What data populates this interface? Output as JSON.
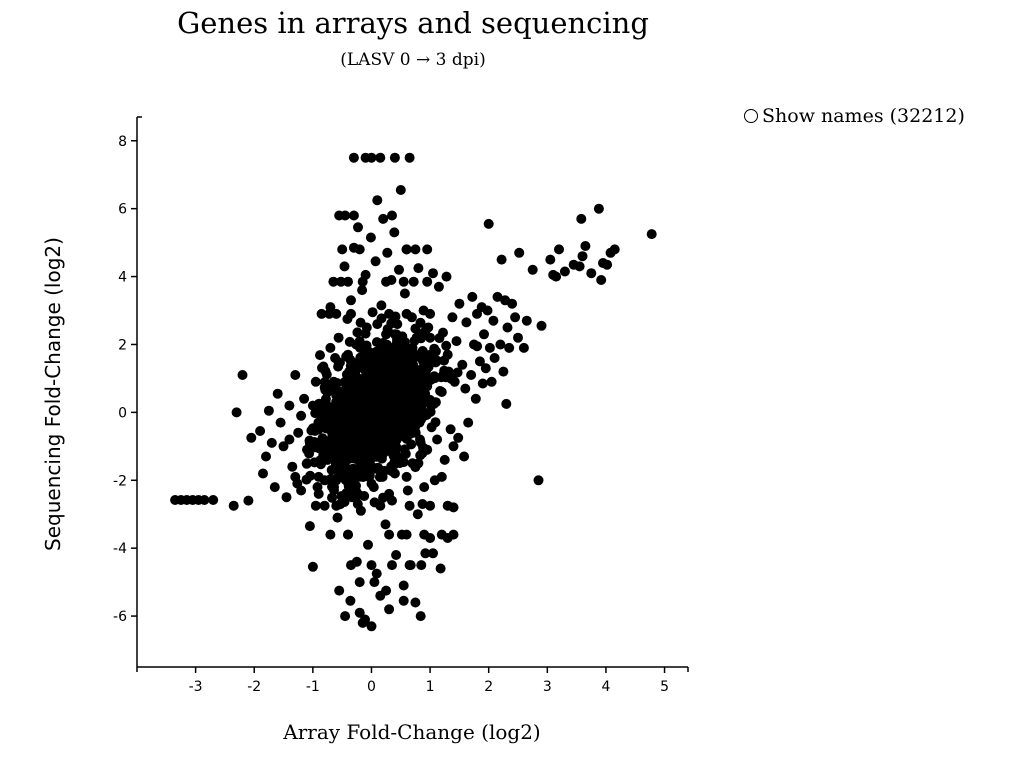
{
  "chart_data": {
    "type": "scatter",
    "title": "Genes in arrays and sequencing",
    "subtitle": "(LASV 0 → 3 dpi)",
    "xlabel": "Array Fold-Change (log2)",
    "ylabel": "Sequencing Fold-Change (log2)",
    "xlim": [
      -4,
      5.4
    ],
    "ylim": [
      -7.5,
      8.7
    ],
    "xticks": [
      -3,
      -2,
      -1,
      0,
      1,
      2,
      3,
      4,
      5
    ],
    "yticks": [
      -6,
      -4,
      -2,
      0,
      2,
      4,
      6,
      8
    ],
    "grid": false,
    "marker_color": "#000000",
    "legend": {
      "label": "Show names (32212)",
      "position": "top-right"
    },
    "series": [
      {
        "points": [
          [
            -3.35,
            -2.58
          ],
          [
            -3.25,
            -2.58
          ],
          [
            -3.15,
            -2.58
          ],
          [
            -3.05,
            -2.58
          ],
          [
            -2.95,
            -2.58
          ],
          [
            -2.85,
            -2.58
          ],
          [
            -2.7,
            -2.58
          ],
          [
            -2.35,
            -2.75
          ],
          [
            -2.3,
            0.0
          ],
          [
            -2.1,
            -2.6
          ],
          [
            -2.05,
            -0.75
          ],
          [
            -2.2,
            1.1
          ],
          [
            -1.9,
            -0.55
          ],
          [
            -1.85,
            -1.8
          ],
          [
            -1.8,
            -1.3
          ],
          [
            -1.75,
            0.05
          ],
          [
            -1.7,
            -0.9
          ],
          [
            -1.65,
            -2.2
          ],
          [
            -1.6,
            0.55
          ],
          [
            -1.55,
            -0.3
          ],
          [
            -1.5,
            -1.0
          ],
          [
            -1.45,
            -2.5
          ],
          [
            -1.4,
            0.2
          ],
          [
            -1.35,
            -1.6
          ],
          [
            -1.3,
            1.1
          ],
          [
            -1.25,
            -0.6
          ],
          [
            -1.2,
            -2.3
          ],
          [
            -1.15,
            0.4
          ],
          [
            -1.1,
            -1.1
          ],
          [
            -1.05,
            -3.35
          ],
          [
            -1.0,
            -4.55
          ],
          [
            -0.95,
            0.9
          ],
          [
            -0.9,
            -1.9
          ],
          [
            -0.85,
            -0.2
          ],
          [
            -0.82,
            1.35
          ],
          [
            -0.8,
            -2.75
          ],
          [
            -0.78,
            0.3
          ],
          [
            -0.75,
            -1.4
          ],
          [
            -0.72,
            2.9
          ],
          [
            -0.7,
            3.1
          ],
          [
            -0.68,
            -0.8
          ],
          [
            -0.66,
            0.75
          ],
          [
            -0.64,
            -2.2
          ],
          [
            -0.62,
            1.6
          ],
          [
            -0.6,
            -0.1
          ],
          [
            -0.58,
            -3.1
          ],
          [
            -0.56,
            2.2
          ],
          [
            -0.55,
            -5.25
          ],
          [
            -0.52,
            3.85
          ],
          [
            -0.5,
            -1.7
          ],
          [
            -0.48,
            0.55
          ],
          [
            -0.46,
            4.3
          ],
          [
            -0.45,
            5.8
          ],
          [
            -0.43,
            -0.5
          ],
          [
            -0.41,
            2.75
          ],
          [
            -0.4,
            -3.6
          ],
          [
            -0.38,
            1.2
          ],
          [
            -0.36,
            -5.55
          ],
          [
            -0.35,
            3.3
          ],
          [
            -0.33,
            -2.5
          ],
          [
            -0.31,
            0.1
          ],
          [
            -0.3,
            4.85
          ],
          [
            -0.28,
            -1.2
          ],
          [
            -0.26,
            2.0
          ],
          [
            -0.25,
            -4.4
          ],
          [
            -0.23,
            5.45
          ],
          [
            -0.21,
            0.8
          ],
          [
            -0.2,
            -5.9
          ],
          [
            -0.18,
            -2.9
          ],
          [
            -0.16,
            3.6
          ],
          [
            -0.15,
            1.5
          ],
          [
            -0.13,
            -0.9
          ],
          [
            -0.11,
            -6.1
          ],
          [
            -0.1,
            4.05
          ],
          [
            -0.08,
            2.5
          ],
          [
            -0.06,
            -3.9
          ],
          [
            -0.05,
            0.3
          ],
          [
            -0.03,
            -1.6
          ],
          [
            -0.01,
            5.15
          ],
          [
            0.0,
            -6.3
          ],
          [
            0.02,
            2.95
          ],
          [
            0.04,
            -2.2
          ],
          [
            0.05,
            0.65
          ],
          [
            0.07,
            4.45
          ],
          [
            0.09,
            -4.75
          ],
          [
            0.1,
            6.25
          ],
          [
            0.12,
            -0.4
          ],
          [
            0.14,
            1.8
          ],
          [
            0.15,
            -5.4
          ],
          [
            0.17,
            3.15
          ],
          [
            0.19,
            -1.9
          ],
          [
            0.2,
            5.7
          ],
          [
            0.22,
            0.2
          ],
          [
            0.24,
            -3.3
          ],
          [
            0.25,
            2.3
          ],
          [
            0.27,
            4.7
          ],
          [
            0.29,
            -0.7
          ],
          [
            0.3,
            -5.8
          ],
          [
            0.32,
            1.3
          ],
          [
            0.34,
            3.9
          ],
          [
            0.35,
            -2.6
          ],
          [
            0.37,
            0.9
          ],
          [
            0.39,
            5.3
          ],
          [
            0.4,
            7.5
          ],
          [
            0.42,
            -4.2
          ],
          [
            0.44,
            2.6
          ],
          [
            0.45,
            -1.3
          ],
          [
            0.47,
            4.2
          ],
          [
            0.49,
            0.0
          ],
          [
            0.5,
            6.55
          ],
          [
            0.52,
            -3.6
          ],
          [
            0.54,
            1.9
          ],
          [
            0.55,
            -5.1
          ],
          [
            0.57,
            3.5
          ],
          [
            0.59,
            -0.6
          ],
          [
            0.6,
            4.8
          ],
          [
            0.62,
            -2.3
          ],
          [
            0.64,
            1.0
          ],
          [
            0.65,
            7.5
          ],
          [
            0.67,
            -4.5
          ],
          [
            0.69,
            2.8
          ],
          [
            0.7,
            -1.5
          ],
          [
            0.72,
            3.85
          ],
          [
            0.74,
            0.4
          ],
          [
            0.75,
            -5.6
          ],
          [
            0.77,
            2.2
          ],
          [
            0.79,
            -3.0
          ],
          [
            0.8,
            4.25
          ],
          [
            0.82,
            -0.3
          ],
          [
            0.84,
            -6.0
          ],
          [
            0.85,
            1.6
          ],
          [
            0.87,
            -2.7
          ],
          [
            0.89,
            3.0
          ],
          [
            0.9,
            0.75
          ],
          [
            0.92,
            -4.15
          ],
          [
            0.94,
            1.3
          ],
          [
            0.95,
            -1.1
          ],
          [
            0.97,
            2.5
          ],
          [
            1.0,
            -3.7
          ],
          [
            1.02,
            0.2
          ],
          [
            1.05,
            4.1
          ],
          [
            1.08,
            -2.0
          ],
          [
            1.1,
            1.8
          ],
          [
            1.12,
            -0.8
          ],
          [
            1.15,
            3.7
          ],
          [
            1.18,
            -4.6
          ],
          [
            1.2,
            0.6
          ],
          [
            1.22,
            2.35
          ],
          [
            1.25,
            -1.4
          ],
          [
            1.28,
            4.0
          ],
          [
            1.3,
            -3.7
          ],
          [
            1.32,
            1.2
          ],
          [
            1.35,
            -0.5
          ],
          [
            1.38,
            2.8
          ],
          [
            1.4,
            -2.8
          ],
          [
            1.42,
            0.9
          ],
          [
            1.45,
            2.1
          ],
          [
            1.48,
            -0.75
          ],
          [
            1.5,
            3.2
          ],
          [
            1.55,
            1.4
          ],
          [
            1.58,
            -1.3
          ],
          [
            1.6,
            0.7
          ],
          [
            1.62,
            2.65
          ],
          [
            1.65,
            -0.3
          ],
          [
            1.7,
            1.1
          ],
          [
            1.72,
            3.4
          ],
          [
            1.75,
            2.0
          ],
          [
            1.78,
            0.4
          ],
          [
            1.8,
            2.9
          ],
          [
            1.85,
            1.5
          ],
          [
            1.88,
            3.1
          ],
          [
            1.9,
            0.85
          ],
          [
            1.92,
            2.3
          ],
          [
            1.95,
            1.3
          ],
          [
            1.98,
            3.0
          ],
          [
            2.0,
            5.55
          ],
          [
            2.02,
            1.9
          ],
          [
            2.05,
            0.9
          ],
          [
            2.08,
            2.7
          ],
          [
            2.1,
            1.6
          ],
          [
            2.15,
            3.4
          ],
          [
            2.2,
            2.0
          ],
          [
            2.22,
            4.5
          ],
          [
            2.25,
            1.2
          ],
          [
            2.28,
            3.3
          ],
          [
            2.3,
            0.25
          ],
          [
            2.32,
            2.5
          ],
          [
            2.35,
            1.9
          ],
          [
            2.4,
            3.2
          ],
          [
            2.45,
            2.8
          ],
          [
            2.5,
            2.2
          ],
          [
            2.52,
            4.7
          ],
          [
            2.6,
            1.9
          ],
          [
            2.65,
            2.7
          ],
          [
            2.75,
            4.2
          ],
          [
            2.85,
            -2.0
          ],
          [
            2.9,
            2.55
          ],
          [
            3.05,
            4.5
          ],
          [
            3.1,
            4.05
          ],
          [
            3.15,
            4.0
          ],
          [
            3.2,
            4.8
          ],
          [
            3.3,
            4.15
          ],
          [
            3.45,
            4.35
          ],
          [
            3.55,
            4.3
          ],
          [
            3.58,
            5.7
          ],
          [
            3.6,
            4.6
          ],
          [
            3.65,
            4.9
          ],
          [
            3.75,
            4.1
          ],
          [
            3.88,
            6.0
          ],
          [
            3.92,
            3.9
          ],
          [
            3.95,
            4.4
          ],
          [
            4.02,
            4.35
          ],
          [
            4.08,
            4.7
          ],
          [
            4.15,
            4.8
          ],
          [
            4.78,
            5.25
          ],
          [
            -0.3,
            7.5
          ],
          [
            -0.1,
            7.5
          ],
          [
            0.0,
            7.5
          ],
          [
            0.15,
            7.5
          ],
          [
            -0.55,
            5.8
          ],
          [
            -0.3,
            5.8
          ],
          [
            0.35,
            5.8
          ],
          [
            -0.4,
            3.85
          ],
          [
            -0.65,
            3.85
          ],
          [
            -0.15,
            3.85
          ],
          [
            0.25,
            3.85
          ],
          [
            0.55,
            3.85
          ],
          [
            0.95,
            3.85
          ],
          [
            -0.6,
            2.9
          ],
          [
            -0.85,
            2.9
          ],
          [
            -0.35,
            2.9
          ],
          [
            0.3,
            2.9
          ],
          [
            0.6,
            2.9
          ],
          [
            1.0,
            2.9
          ],
          [
            -0.5,
            4.8
          ],
          [
            -0.2,
            4.8
          ],
          [
            0.6,
            4.8
          ],
          [
            0.75,
            4.8
          ],
          [
            0.95,
            4.8
          ],
          [
            -0.4,
            -3.6
          ],
          [
            -0.7,
            -3.6
          ],
          [
            0.3,
            -3.6
          ],
          [
            0.6,
            -3.6
          ],
          [
            0.9,
            -3.6
          ],
          [
            1.2,
            -3.6
          ],
          [
            1.4,
            -3.6
          ],
          [
            -0.6,
            -2.75
          ],
          [
            -0.95,
            -2.75
          ],
          [
            0.15,
            -2.75
          ],
          [
            0.65,
            -2.75
          ],
          [
            1.0,
            -2.75
          ],
          [
            1.3,
            -2.75
          ],
          [
            -0.35,
            -4.5
          ],
          [
            0.0,
            -4.5
          ],
          [
            0.35,
            -4.5
          ],
          [
            0.65,
            -4.5
          ],
          [
            0.85,
            -4.5
          ],
          [
            1.05,
            -4.15
          ],
          [
            -0.2,
            -5.0
          ],
          [
            0.05,
            -5.0
          ],
          [
            0.25,
            -5.25
          ],
          [
            0.55,
            -5.55
          ],
          [
            -0.45,
            -6.0
          ],
          [
            -0.15,
            -6.2
          ],
          [
            -1.2,
            -0.1
          ],
          [
            -1.0,
            0.2
          ],
          [
            -0.9,
            -0.5
          ],
          [
            -0.7,
            -1.0
          ],
          [
            -0.6,
            0.5
          ],
          [
            -0.4,
            -0.2
          ],
          [
            -0.2,
            0.4
          ],
          [
            0.1,
            -0.8
          ],
          [
            0.3,
            0.2
          ],
          [
            0.5,
            -0.4
          ],
          [
            0.7,
            0.6
          ],
          [
            0.9,
            -0.1
          ],
          [
            1.1,
            0.3
          ],
          [
            -0.8,
            -0.3
          ],
          [
            -0.5,
            -1.5
          ],
          [
            -0.3,
            1.0
          ],
          [
            0.0,
            -1.2
          ],
          [
            0.2,
            1.5
          ],
          [
            0.4,
            -1.8
          ],
          [
            0.6,
            1.2
          ],
          [
            0.8,
            -1.5
          ],
          [
            1.0,
            1.0
          ],
          [
            -1.4,
            -0.8
          ],
          [
            -1.3,
            -1.9
          ],
          [
            -0.9,
            -2.4
          ],
          [
            -0.6,
            -2.0
          ],
          [
            -0.3,
            -2.3
          ],
          [
            0.0,
            -2.1
          ],
          [
            0.3,
            -2.4
          ],
          [
            0.6,
            -1.9
          ],
          [
            0.9,
            -2.2
          ],
          [
            1.2,
            -1.9
          ],
          [
            1.4,
            -1.0
          ],
          [
            -1.1,
            -1.5
          ],
          [
            -0.2,
            2.1
          ],
          [
            0.1,
            2.6
          ],
          [
            0.4,
            2.3
          ],
          [
            0.7,
            1.9
          ],
          [
            1.0,
            2.2
          ],
          [
            1.3,
            1.7
          ],
          [
            -0.4,
            1.7
          ],
          [
            -0.7,
            1.9
          ]
        ]
      }
    ]
  }
}
